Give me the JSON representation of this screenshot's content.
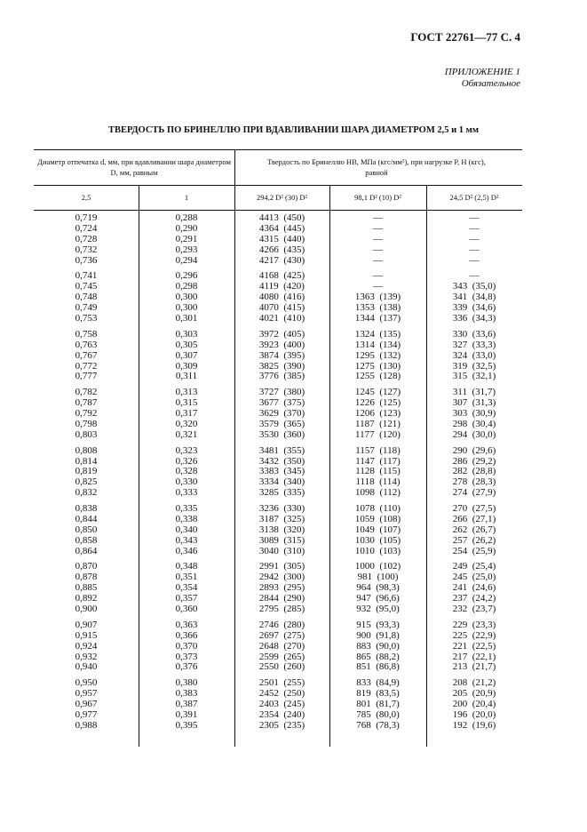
{
  "page_header": "ГОСТ 22761—77 С. 4",
  "appendix": {
    "label": "ПРИЛОЖЕНИЕ 1",
    "status": "Обязательное"
  },
  "title": "ТВЕРДОСТЬ ПО БРИНЕЛЛЮ ПРИ ВДАВЛИВАНИИ ШАРА ДИАМЕТРОМ 2,5 и 1 мм",
  "table": {
    "header_left": "Диаметр отпечатка d, мм, при вдавливании шара диаметром D, мм, равным",
    "header_right": "Твердость по Бринеллю НВ, МПа (кгс/мм²), при нагрузке P, Н (кгс), равной",
    "columns": [
      "2,5",
      "1",
      "294,2 D² (30) D²",
      "98,1 D² (10) D²",
      "24,5 D² (2,5) D²"
    ],
    "groups": [
      [
        [
          "0,719",
          "0,288",
          "4413  (450)",
          "—",
          "—"
        ],
        [
          "0,724",
          "0,290",
          "4364  (445)",
          "—",
          "—"
        ],
        [
          "0,728",
          "0,291",
          "4315  (440)",
          "—",
          "—"
        ],
        [
          "0,732",
          "0,293",
          "4266  (435)",
          "—",
          "—"
        ],
        [
          "0,736",
          "0,294",
          "4217  (430)",
          "—",
          "—"
        ]
      ],
      [
        [
          "0,741",
          "0,296",
          "4168  (425)",
          "—",
          "—"
        ],
        [
          "0,745",
          "0,298",
          "4119  (420)",
          "—",
          "343  (35,0)"
        ],
        [
          "0,748",
          "0,300",
          "4080  (416)",
          "1363  (139)",
          "341  (34,8)"
        ],
        [
          "0,749",
          "0,300",
          "4070  (415)",
          "1353  (138)",
          "339  (34,6)"
        ],
        [
          "0,753",
          "0,301",
          "4021  (410)",
          "1344  (137)",
          "336  (34,3)"
        ]
      ],
      [
        [
          "0,758",
          "0,303",
          "3972  (405)",
          "1324  (135)",
          "330  (33,6)"
        ],
        [
          "0,763",
          "0,305",
          "3923  (400)",
          "1314  (134)",
          "327  (33,3)"
        ],
        [
          "0,767",
          "0,307",
          "3874  (395)",
          "1295  (132)",
          "324  (33,0)"
        ],
        [
          "0,772",
          "0,309",
          "3825  (390)",
          "1275  (130)",
          "319  (32,5)"
        ],
        [
          "0,777",
          "0,311",
          "3776  (385)",
          "1255  (128)",
          "315  (32,1)"
        ]
      ],
      [
        [
          "0,782",
          "0,313",
          "3727  (380)",
          "1245  (127)",
          "311  (31,7)"
        ],
        [
          "0,787",
          "0,315",
          "3677  (375)",
          "1226  (125)",
          "307  (31,3)"
        ],
        [
          "0,792",
          "0,317",
          "3629  (370)",
          "1206  (123)",
          "303  (30,9)"
        ],
        [
          "0,798",
          "0,320",
          "3579  (365)",
          "1187  (121)",
          "298  (30,4)"
        ],
        [
          "0,803",
          "0,321",
          "3530  (360)",
          "1177  (120)",
          "294  (30,0)"
        ]
      ],
      [
        [
          "0,808",
          "0,323",
          "3481  (355)",
          "1157  (118)",
          "290  (29,6)"
        ],
        [
          "0,814",
          "0,326",
          "3432  (350)",
          "1147  (117)",
          "286  (29,2)"
        ],
        [
          "0,819",
          "0,328",
          "3383  (345)",
          "1128  (115)",
          "282  (28,8)"
        ],
        [
          "0,825",
          "0,330",
          "3334  (340)",
          "1118  (114)",
          "278  (28,3)"
        ],
        [
          "0,832",
          "0,333",
          "3285  (335)",
          "1098  (112)",
          "274  (27,9)"
        ]
      ],
      [
        [
          "0,838",
          "0,335",
          "3236  (330)",
          "1078  (110)",
          "270  (27,5)"
        ],
        [
          "0,844",
          "0,338",
          "3187  (325)",
          "1059  (108)",
          "266  (27,1)"
        ],
        [
          "0,850",
          "0,340",
          "3138  (320)",
          "1049  (107)",
          "262  (26,7)"
        ],
        [
          "0,858",
          "0,343",
          "3089  (315)",
          "1030  (105)",
          "257  (26,2)"
        ],
        [
          "0,864",
          "0,346",
          "3040  (310)",
          "1010  (103)",
          "254  (25,9)"
        ]
      ],
      [
        [
          "0,870",
          "0,348",
          "2991  (305)",
          "1000  (102)",
          "249  (25,4)"
        ],
        [
          "0,878",
          "0,351",
          "2942  (300)",
          "981  (100)",
          "245  (25,0)"
        ],
        [
          "0,885",
          "0,354",
          "2893  (295)",
          "964  (98,3)",
          "241  (24,6)"
        ],
        [
          "0,892",
          "0,357",
          "2844  (290)",
          "947  (96,6)",
          "237  (24,2)"
        ],
        [
          "0,900",
          "0,360",
          "2795  (285)",
          "932  (95,0)",
          "232  (23,7)"
        ]
      ],
      [
        [
          "0,907",
          "0,363",
          "2746  (280)",
          "915  (93,3)",
          "229  (23,3)"
        ],
        [
          "0,915",
          "0,366",
          "2697  (275)",
          "900  (91,8)",
          "225  (22,9)"
        ],
        [
          "0,924",
          "0,370",
          "2648  (270)",
          "883  (90,0)",
          "221  (22,5)"
        ],
        [
          "0,932",
          "0,373",
          "2599  (265)",
          "865  (88,2)",
          "217  (22,1)"
        ],
        [
          "0,940",
          "0,376",
          "2550  (260)",
          "851  (86,8)",
          "213  (21,7)"
        ]
      ],
      [
        [
          "0,950",
          "0,380",
          "2501  (255)",
          "833  (84,9)",
          "208  (21,2)"
        ],
        [
          "0,957",
          "0,383",
          "2452  (250)",
          "819  (83,5)",
          "205  (20,9)"
        ],
        [
          "0,967",
          "0,387",
          "2403  (245)",
          "801  (81,7)",
          "200  (20,4)"
        ],
        [
          "0,977",
          "0,391",
          "2354  (240)",
          "785  (80,0)",
          "196  (20,0)"
        ],
        [
          "0,988",
          "0,395",
          "2305  (235)",
          "768  (78,3)",
          "192  (19,6)"
        ]
      ]
    ]
  }
}
